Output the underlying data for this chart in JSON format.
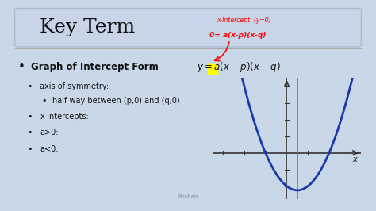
{
  "bg_color": "#c8d8e8",
  "slide_bg": "#e8eef5",
  "title_box_color": "#c8d4e8",
  "title_text": "Key Term",
  "title_fontsize": 18,
  "main_bullet": "Graph of Intercept Form",
  "formula": "$y = a(x-p)(x-q)$",
  "sub_bullets": [
    "axis of symmetry:",
    "half way between (p,0) and (q,0)",
    "x-intercepts:",
    "a>0:",
    "a<0:"
  ],
  "graph_bg": "#f0f4f8",
  "grid_color": "#d0d8e0",
  "parabola_color": "#1a3aaa",
  "axis_color": "#333333",
  "vline_color": "#cc4444",
  "xlabel": "x",
  "highlight_yellow": "#ffff00",
  "text_color": "#111111",
  "author": "Roshan",
  "sep_color": "#aaaaaa"
}
